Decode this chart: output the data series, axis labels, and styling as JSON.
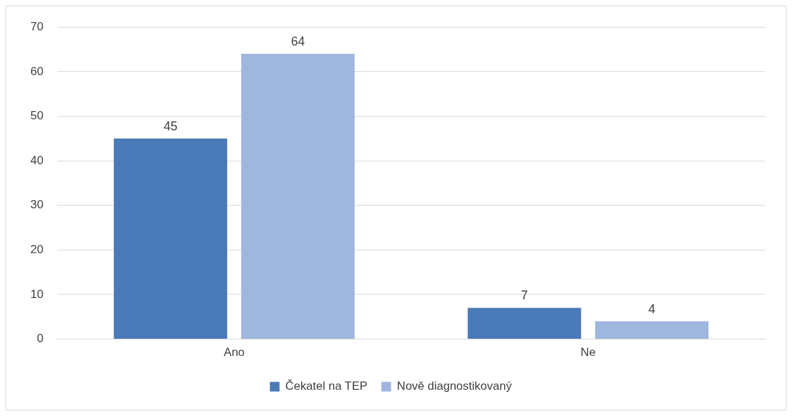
{
  "chart_data": {
    "type": "bar",
    "categories": [
      "Ano",
      "Ne"
    ],
    "series": [
      {
        "name": "Čekatel na TEP",
        "color": "#4a7ab8",
        "values": [
          45,
          7
        ]
      },
      {
        "name": "Nově diagnostikovaný",
        "color": "#9fb6dd",
        "values": [
          64,
          4
        ]
      }
    ],
    "ylim": [
      0,
      70
    ],
    "yticks": [
      0,
      10,
      20,
      30,
      40,
      50,
      60,
      70
    ],
    "grid": "y",
    "legend": "bottom",
    "data_labels": true
  }
}
